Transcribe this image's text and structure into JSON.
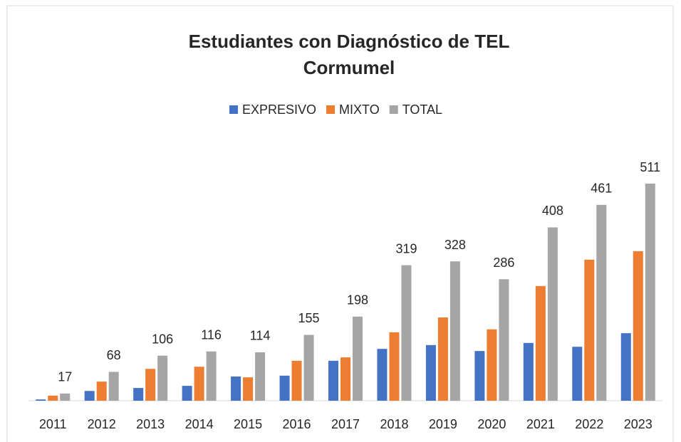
{
  "chart_data": {
    "type": "bar",
    "title": [
      "Estudiantes con Diagnóstico de TEL",
      "Cormumel"
    ],
    "categories": [
      "2011",
      "2012",
      "2013",
      "2014",
      "2015",
      "2016",
      "2017",
      "2018",
      "2019",
      "2020",
      "2021",
      "2022",
      "2023"
    ],
    "series": [
      {
        "name": "EXPRESIVO",
        "color": "#4472c4",
        "values": [
          3,
          23,
          30,
          35,
          57,
          59,
          94,
          122,
          131,
          117,
          136,
          127,
          159
        ]
      },
      {
        "name": "MIXTO",
        "color": "#ed7d31",
        "values": [
          12,
          45,
          75,
          80,
          55,
          94,
          102,
          161,
          196,
          168,
          270,
          332,
          352
        ]
      },
      {
        "name": "TOTAL",
        "color": "#a5a5a5",
        "values": [
          17,
          68,
          106,
          116,
          114,
          155,
          198,
          319,
          328,
          286,
          408,
          461,
          511
        ],
        "data_labels": true
      }
    ],
    "legend": "top"
  }
}
